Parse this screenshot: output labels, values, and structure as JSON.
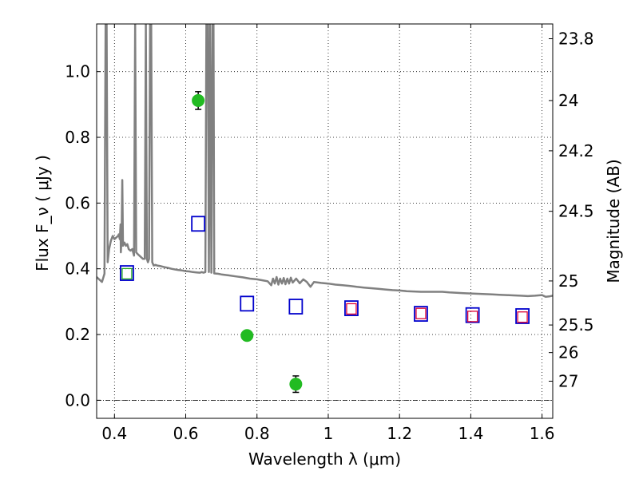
{
  "chart_data": {
    "type": "scatter",
    "xlabel": "Wavelength  λ (μm)",
    "ylabel": "Flux  F_ν  ( μJy )",
    "y2label": "Magnitude (AB)",
    "xlim": [
      0.35,
      1.63
    ],
    "ylim": [
      -0.055,
      1.145
    ],
    "grid": true,
    "x_ticks": [
      0.4,
      0.6,
      0.8,
      1.0,
      1.2,
      1.4,
      1.6
    ],
    "x_tick_labels": [
      "0.4",
      "0.6",
      "0.8",
      "1",
      "1.2",
      "1.4",
      "1.6"
    ],
    "y_ticks": [
      0.0,
      0.2,
      0.4,
      0.6,
      0.8,
      1.0
    ],
    "y_tick_labels": [
      "0.0",
      "0.2",
      "0.4",
      "0.6",
      "0.8",
      "1.0"
    ],
    "y2_ticks": [
      {
        "label": "23.8",
        "flux": 1.1
      },
      {
        "label": "24",
        "flux": 0.912
      },
      {
        "label": "24.2",
        "flux": 0.759
      },
      {
        "label": "24.5",
        "flux": 0.575
      },
      {
        "label": "25",
        "flux": 0.363
      },
      {
        "label": "25.5",
        "flux": 0.229
      },
      {
        "label": "26",
        "flux": 0.145
      },
      {
        "label": "27",
        "flux": 0.058
      }
    ],
    "series": [
      {
        "kind": "observed",
        "color": "#22bb22",
        "points": [
          {
            "x": 0.635,
            "y": 0.912,
            "err": 0.027
          },
          {
            "x": 0.772,
            "y": 0.197,
            "err": 0.013
          },
          {
            "x": 0.909,
            "y": 0.049,
            "err": 0.025
          }
        ]
      },
      {
        "kind": "model-bands",
        "color": "#0000cc",
        "points": [
          {
            "x": 0.435,
            "y": 0.387
          },
          {
            "x": 0.635,
            "y": 0.537
          },
          {
            "x": 0.772,
            "y": 0.294
          },
          {
            "x": 0.909,
            "y": 0.285
          },
          {
            "x": 1.065,
            "y": 0.28
          },
          {
            "x": 1.26,
            "y": 0.263
          },
          {
            "x": 1.405,
            "y": 0.259
          },
          {
            "x": 1.545,
            "y": 0.256
          }
        ]
      },
      {
        "kind": "model-bands-red",
        "color": "#dd0033",
        "points": [
          {
            "x": 1.065,
            "y": 0.278
          },
          {
            "x": 1.26,
            "y": 0.264
          },
          {
            "x": 1.405,
            "y": 0.255
          },
          {
            "x": 1.545,
            "y": 0.253
          }
        ]
      },
      {
        "kind": "model-bands-green",
        "color": "#22aa22",
        "points": [
          {
            "x": 0.435,
            "y": 0.385
          }
        ]
      },
      {
        "kind": "template-spectrum",
        "color": "#808080",
        "points": [
          [
            0.35,
            0.375
          ],
          [
            0.365,
            0.36
          ],
          [
            0.372,
            0.385
          ],
          [
            0.375,
            1.145
          ],
          [
            0.378,
            1.145
          ],
          [
            0.381,
            0.42
          ],
          [
            0.385,
            0.46
          ],
          [
            0.39,
            0.485
          ],
          [
            0.395,
            0.5
          ],
          [
            0.4,
            0.49
          ],
          [
            0.405,
            0.495
          ],
          [
            0.41,
            0.5
          ],
          [
            0.412,
            0.505
          ],
          [
            0.415,
            0.49
          ],
          [
            0.417,
            0.535
          ],
          [
            0.418,
            0.45
          ],
          [
            0.42,
            0.49
          ],
          [
            0.422,
            0.67
          ],
          [
            0.424,
            0.47
          ],
          [
            0.428,
            0.48
          ],
          [
            0.432,
            0.47
          ],
          [
            0.436,
            0.475
          ],
          [
            0.44,
            0.46
          ],
          [
            0.445,
            0.455
          ],
          [
            0.45,
            0.46
          ],
          [
            0.455,
            0.44
          ],
          [
            0.458,
            1.145
          ],
          [
            0.461,
            0.45
          ],
          [
            0.465,
            0.445
          ],
          [
            0.47,
            0.44
          ],
          [
            0.475,
            0.435
          ],
          [
            0.48,
            0.43
          ],
          [
            0.485,
            0.43
          ],
          [
            0.488,
            1.145
          ],
          [
            0.491,
            0.43
          ],
          [
            0.494,
            0.42
          ],
          [
            0.497,
            0.43
          ],
          [
            0.5,
            1.145
          ],
          [
            0.503,
            1.145
          ],
          [
            0.506,
            0.42
          ],
          [
            0.51,
            0.41
          ],
          [
            0.515,
            0.412
          ],
          [
            0.52,
            0.41
          ],
          [
            0.53,
            0.408
          ],
          [
            0.54,
            0.405
          ],
          [
            0.55,
            0.403
          ],
          [
            0.56,
            0.4
          ],
          [
            0.57,
            0.398
          ],
          [
            0.58,
            0.396
          ],
          [
            0.59,
            0.395
          ],
          [
            0.6,
            0.393
          ],
          [
            0.61,
            0.392
          ],
          [
            0.62,
            0.39
          ],
          [
            0.63,
            0.389
          ],
          [
            0.64,
            0.388
          ],
          [
            0.645,
            0.39
          ],
          [
            0.65,
            0.388
          ],
          [
            0.655,
            0.39
          ],
          [
            0.658,
            1.145
          ],
          [
            0.662,
            1.145
          ],
          [
            0.665,
            0.39
          ],
          [
            0.668,
            1.145
          ],
          [
            0.672,
            0.388
          ],
          [
            0.675,
            1.145
          ],
          [
            0.678,
            1.145
          ],
          [
            0.68,
            0.386
          ],
          [
            0.69,
            0.385
          ],
          [
            0.7,
            0.383
          ],
          [
            0.72,
            0.38
          ],
          [
            0.74,
            0.377
          ],
          [
            0.76,
            0.374
          ],
          [
            0.78,
            0.37
          ],
          [
            0.8,
            0.368
          ],
          [
            0.82,
            0.364
          ],
          [
            0.83,
            0.362
          ],
          [
            0.84,
            0.35
          ],
          [
            0.845,
            0.37
          ],
          [
            0.85,
            0.355
          ],
          [
            0.855,
            0.375
          ],
          [
            0.86,
            0.352
          ],
          [
            0.865,
            0.37
          ],
          [
            0.87,
            0.355
          ],
          [
            0.875,
            0.372
          ],
          [
            0.88,
            0.353
          ],
          [
            0.885,
            0.37
          ],
          [
            0.89,
            0.355
          ],
          [
            0.895,
            0.373
          ],
          [
            0.9,
            0.358
          ],
          [
            0.91,
            0.37
          ],
          [
            0.92,
            0.356
          ],
          [
            0.93,
            0.368
          ],
          [
            0.94,
            0.36
          ],
          [
            0.95,
            0.345
          ],
          [
            0.96,
            0.36
          ],
          [
            0.98,
            0.357
          ],
          [
            1.0,
            0.355
          ],
          [
            1.02,
            0.352
          ],
          [
            1.04,
            0.35
          ],
          [
            1.06,
            0.348
          ],
          [
            1.08,
            0.345
          ],
          [
            1.1,
            0.343
          ],
          [
            1.12,
            0.341
          ],
          [
            1.14,
            0.339
          ],
          [
            1.16,
            0.337
          ],
          [
            1.18,
            0.335
          ],
          [
            1.2,
            0.334
          ],
          [
            1.22,
            0.332
          ],
          [
            1.24,
            0.331
          ],
          [
            1.26,
            0.33
          ],
          [
            1.28,
            0.33
          ],
          [
            1.3,
            0.33
          ],
          [
            1.32,
            0.33
          ],
          [
            1.34,
            0.328
          ],
          [
            1.36,
            0.327
          ],
          [
            1.38,
            0.326
          ],
          [
            1.4,
            0.325
          ],
          [
            1.42,
            0.324
          ],
          [
            1.44,
            0.323
          ],
          [
            1.46,
            0.322
          ],
          [
            1.48,
            0.321
          ],
          [
            1.5,
            0.32
          ],
          [
            1.52,
            0.319
          ],
          [
            1.54,
            0.318
          ],
          [
            1.56,
            0.317
          ],
          [
            1.58,
            0.318
          ],
          [
            1.6,
            0.32
          ],
          [
            1.61,
            0.315
          ],
          [
            1.62,
            0.316
          ],
          [
            1.63,
            0.318
          ]
        ]
      }
    ]
  }
}
